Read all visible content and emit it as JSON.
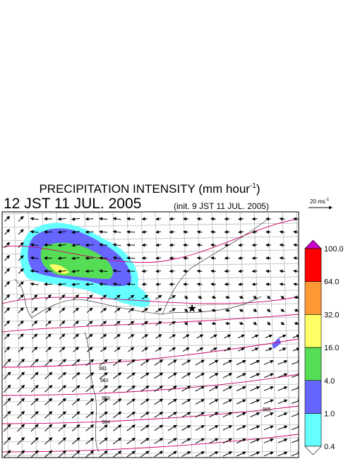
{
  "title": {
    "main": "PRECIPITATION INTENSITY (mm hour",
    "superscript": "-1",
    "end": ")"
  },
  "time": "12 JST 11 JUL. 2005",
  "init": "(init. 9 JST 11 JUL. 2005)",
  "vector_legend": {
    "label": "20 ms",
    "superscript": "-1"
  },
  "colorbar": {
    "labels": [
      "100.0",
      "64.0",
      "32.0",
      "16.0",
      "4.0",
      "1.0",
      "0.4"
    ]
  },
  "contour_labels": [
    "981",
    "982",
    "983",
    "984",
    "985"
  ]
}
